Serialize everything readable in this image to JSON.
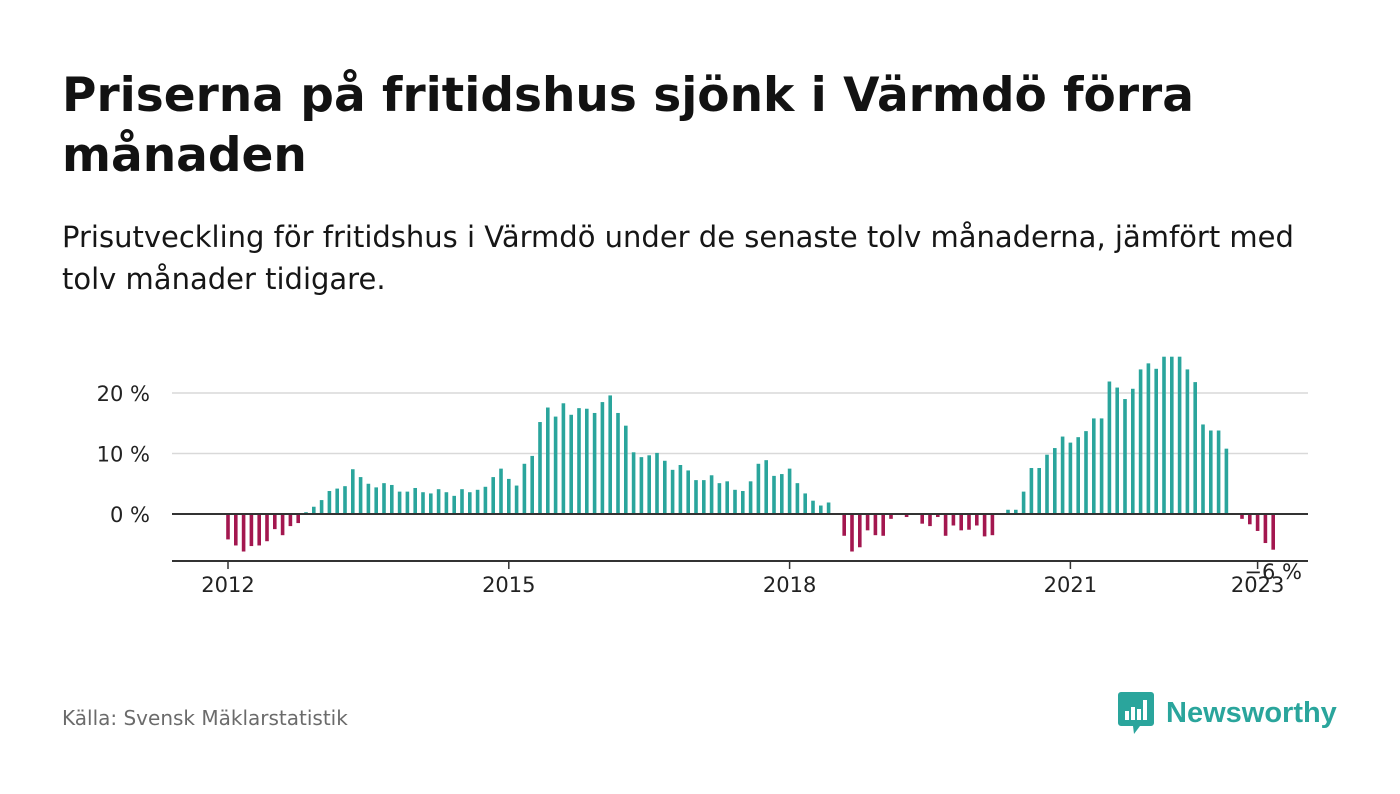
{
  "header": {
    "title": "Priserna på fritidshus sjönk i Värmdö förra månaden",
    "subtitle": "Prisutveckling för fritidshus i Värmdö under de senaste tolv månaderna, jämfört med tolv månader tidigare."
  },
  "footer": {
    "source": "Källa: Svensk Mäklarstatistik",
    "brand": "Newsworthy"
  },
  "colors": {
    "positive": "#2aa59c",
    "negative": "#a3174f",
    "grid": "#d9d9d9",
    "zero_line": "#333333",
    "brand": "#2aa59c"
  },
  "icons": {
    "brand_logo": "bar-chart-speech-bubble-icon"
  },
  "chart_data": {
    "type": "bar",
    "title": "Priserna på fritidshus sjönk i Värmdö förra månaden",
    "subtitle": "Prisutveckling för fritidshus i Värmdö under de senaste tolv månaderna, jämfört med tolv månader tidigare.",
    "xlabel": "",
    "ylabel": "",
    "unit": "%",
    "x_start": "2012-01",
    "x_end": "2023-01",
    "x_ticks": [
      "2012",
      "2015",
      "2018",
      "2021",
      "2023"
    ],
    "y_ticks": [
      "0 %",
      "10 %",
      "20 %"
    ],
    "y_tick_values": [
      0,
      10,
      20
    ],
    "ylim": [
      -7,
      26
    ],
    "grid": true,
    "legend": "none",
    "last_value_label": "−6 %",
    "series": [
      {
        "values": [
          -4.2,
          -5.2,
          -6.2,
          -5.3,
          -5.2,
          -4.5,
          -2.5,
          -3.5,
          -2,
          -1.5,
          0.3,
          1.2,
          2.3,
          3.8,
          4.2,
          4.6,
          7.4,
          6.1,
          5,
          4.4,
          5.1,
          4.8,
          3.7,
          3.7,
          4.3,
          3.6,
          3.4,
          4.1,
          3.6,
          3,
          4.1,
          3.6,
          4,
          4.5,
          6.1,
          7.5,
          5.8,
          4.7,
          8.3,
          9.6,
          15.2,
          17.6,
          16.1,
          18.3,
          16.4,
          17.5,
          17.4,
          16.7,
          18.5,
          19.6,
          16.7,
          14.6,
          10.2,
          9.4,
          9.7,
          10.1,
          8.8,
          7.3,
          8.1,
          7.2,
          5.6,
          5.6,
          6.4,
          5.1,
          5.4,
          4,
          3.8,
          5.4,
          8.3,
          8.9,
          6.3,
          6.6,
          7.5,
          5.1,
          3.4,
          2.2,
          1.4,
          1.9,
          0,
          -3.6,
          -6.2,
          -5.5,
          -2.7,
          -3.5,
          -3.6,
          -0.8,
          0,
          -0.5,
          0,
          -1.6,
          -2,
          -0.5,
          -3.6,
          -1.9,
          -2.7,
          -2.6,
          -1.9,
          -3.7,
          -3.5,
          0,
          0.7,
          0.7,
          3.7,
          7.6,
          7.6,
          9.8,
          10.9,
          12.8,
          11.8,
          12.7,
          13.7,
          15.8,
          15.8,
          21.9,
          20.9,
          19,
          20.7,
          23.9,
          24.9,
          24,
          26,
          26,
          26,
          23.9,
          21.8,
          14.8,
          13.8,
          13.8,
          10.8,
          0,
          -0.8,
          -1.7,
          -2.8,
          -4.8,
          -5.9
        ]
      }
    ]
  }
}
